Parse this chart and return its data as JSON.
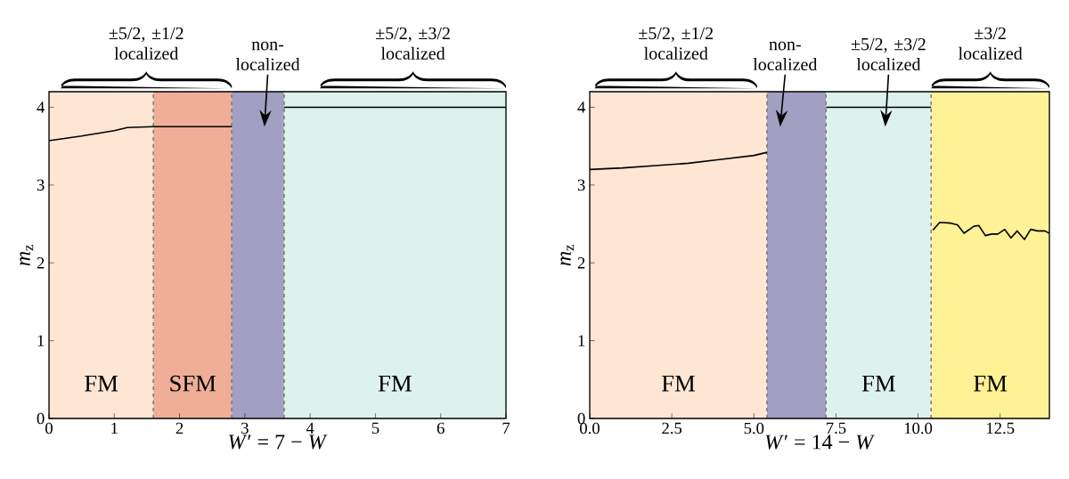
{
  "chart_data": [
    {
      "type": "line",
      "xlabel": "*W*′ = 7 − *W*",
      "ylabel": "*m*$_{z}$",
      "xlim": [
        0,
        7
      ],
      "ylim": [
        0,
        4.2
      ],
      "xticks": [
        0,
        1,
        2,
        3,
        4,
        5,
        6,
        7
      ],
      "yticks": [
        0,
        1,
        2,
        3,
        4
      ],
      "series": [
        {
          "color": "#000000",
          "x": [
            0,
            0.5,
            1.0,
            1.2,
            1.6,
            2.8
          ],
          "values": [
            3.57,
            3.63,
            3.7,
            3.74,
            3.75,
            3.75
          ]
        },
        {
          "color": "#000000",
          "x": [
            3.6,
            7
          ],
          "values": [
            4.0,
            4.0
          ]
        }
      ],
      "bands": [
        {
          "axis": "x",
          "from": 0,
          "to": 1.6,
          "label": "FM",
          "color": "#fde6d4"
        },
        {
          "axis": "x",
          "from": 1.6,
          "to": 2.8,
          "label": "SFM",
          "color": "#eeae97"
        },
        {
          "axis": "x",
          "from": 2.8,
          "to": 3.6,
          "color": "#a19fc2"
        },
        {
          "axis": "x",
          "from": 3.6,
          "to": 7,
          "label": "FM",
          "color": "#ddf2ed"
        }
      ],
      "annotations": [
        "±5/2, ±1/2 localized",
        "non-localized",
        "±5/2, ±3/2 localized"
      ],
      "grid": false
    },
    {
      "type": "line",
      "xlabel": "*W*′ = 14 − *W*",
      "ylabel": "*m*$_{z}$",
      "xlim": [
        0,
        14
      ],
      "ylim": [
        0,
        4.2
      ],
      "xticks": [
        {
          "value": 0,
          "label": "0.0"
        },
        {
          "value": 2.5,
          "label": "2.5"
        },
        {
          "value": 5,
          "label": "5.0"
        },
        {
          "value": 7.5,
          "label": "7.5"
        },
        {
          "value": 10,
          "label": "10.0"
        },
        {
          "value": 12.5,
          "label": "12.5"
        }
      ],
      "yticks": [
        0,
        1,
        2,
        3,
        4
      ],
      "series": [
        {
          "color": "#000000",
          "x": [
            0,
            1,
            2,
            3,
            4,
            5,
            5.4
          ],
          "values": [
            3.2,
            3.22,
            3.25,
            3.28,
            3.33,
            3.38,
            3.42
          ]
        },
        {
          "color": "#000000",
          "x": [
            7.2,
            10.4
          ],
          "values": [
            4.0,
            4.0
          ]
        },
        {
          "color": "#000000",
          "x": [
            10.45,
            10.66,
            11.0,
            11.2,
            11.4,
            11.7,
            11.85,
            12.05,
            12.24,
            12.43,
            12.64,
            12.83,
            13.02,
            13.24,
            13.43,
            13.64,
            13.86,
            14.0
          ],
          "values": [
            2.42,
            2.52,
            2.51,
            2.49,
            2.38,
            2.47,
            2.48,
            2.35,
            2.37,
            2.37,
            2.43,
            2.32,
            2.41,
            2.3,
            2.43,
            2.41,
            2.41,
            2.38
          ]
        }
      ],
      "bands": [
        {
          "axis": "x",
          "from": 0,
          "to": 5.4,
          "label": "FM",
          "color": "#fde6d4"
        },
        {
          "axis": "x",
          "from": 5.4,
          "to": 7.2,
          "color": "#a19fc2"
        },
        {
          "axis": "x",
          "from": 7.2,
          "to": 10.4,
          "label": "FM",
          "color": "#ddf2ed"
        },
        {
          "axis": "x",
          "from": 10.4,
          "to": 14,
          "label": "FM",
          "color": "#fff196"
        }
      ],
      "annotations": [
        "±5/2, ±1/2 localized",
        "non-localized",
        "±5/2, ±3/2 localized",
        "±3/2 localized"
      ],
      "grid": false
    }
  ]
}
